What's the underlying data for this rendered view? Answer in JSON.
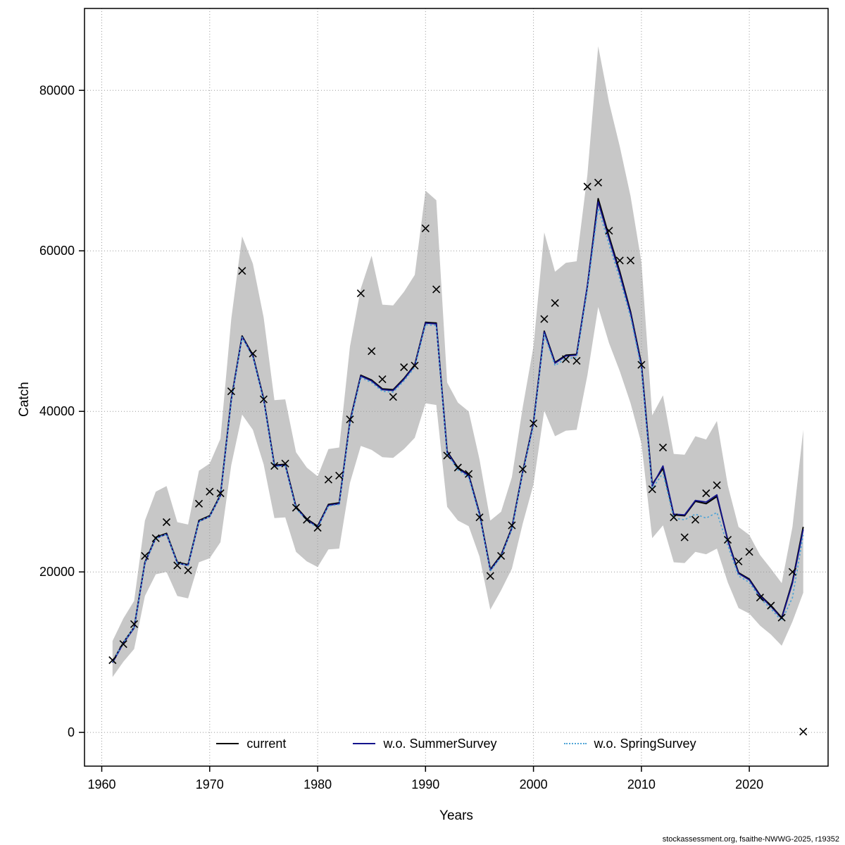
{
  "figure": {
    "footer": "stockassessment.org, fsaithe-NWWG-2025, r19352"
  },
  "legend": [
    {
      "label": "current",
      "color": "#000000",
      "style": "solid"
    },
    {
      "label": "w.o. SummerSurvey",
      "color": "#14148c",
      "style": "solid"
    },
    {
      "label": "w.o. SpringSurvey",
      "color": "#4fa4d6",
      "style": "dotted"
    }
  ],
  "chart_data": {
    "type": "line",
    "title": "",
    "xlabel": "Years",
    "ylabel": "Catch",
    "xlim": [
      1958.4,
      2027.3
    ],
    "ylim": [
      -4200,
      90200
    ],
    "xticks": [
      1960,
      1970,
      1980,
      1990,
      2000,
      2010,
      2020
    ],
    "yticks": [
      0,
      20000,
      40000,
      60000,
      80000
    ],
    "grid": true,
    "legend_position": "bottom-inside",
    "colors": {
      "band": "#c7c7c7",
      "grid": "#999999",
      "box": "#000000",
      "marker": "#000000"
    },
    "x": [
      1961,
      1962,
      1963,
      1964,
      1965,
      1966,
      1967,
      1968,
      1969,
      1970,
      1971,
      1972,
      1973,
      1974,
      1975,
      1976,
      1977,
      1978,
      1979,
      1980,
      1981,
      1982,
      1983,
      1984,
      1985,
      1986,
      1987,
      1988,
      1989,
      1990,
      1991,
      1992,
      1993,
      1994,
      1995,
      1996,
      1997,
      1998,
      1999,
      2000,
      2001,
      2002,
      2003,
      2004,
      2005,
      2006,
      2007,
      2008,
      2009,
      2010,
      2011,
      2012,
      2013,
      2014,
      2015,
      2016,
      2017,
      2018,
      2019,
      2020,
      2021,
      2022,
      2023,
      2024,
      2025
    ],
    "band": {
      "lower": [
        6900,
        8800,
        10400,
        17000,
        19700,
        20000,
        17000,
        16700,
        21200,
        21700,
        23700,
        33300,
        39600,
        37700,
        33400,
        26700,
        26800,
        22500,
        21300,
        20600,
        22800,
        22900,
        31100,
        35700,
        35200,
        34300,
        34200,
        35300,
        36700,
        41000,
        40800,
        28100,
        26400,
        25700,
        21900,
        15300,
        17700,
        20400,
        26000,
        30900,
        40100,
        36900,
        37600,
        37700,
        44500,
        53000,
        48500,
        45000,
        41000,
        36000,
        24200,
        25800,
        21200,
        21100,
        22500,
        22200,
        22900,
        18700,
        15500,
        14800,
        13300,
        12200,
        10800,
        13800,
        17400
      ],
      "upper": [
        11400,
        14200,
        16400,
        26400,
        30000,
        30700,
        26200,
        25900,
        32600,
        33500,
        36600,
        51500,
        61800,
        58400,
        51700,
        41400,
        41500,
        34900,
        33000,
        31900,
        35300,
        35500,
        48100,
        55300,
        59400,
        53300,
        53200,
        54900,
        57000,
        67500,
        66300,
        43600,
        41100,
        40000,
        34000,
        26400,
        27500,
        31800,
        40500,
        48100,
        62300,
        57400,
        58500,
        58700,
        69500,
        85500,
        78500,
        73000,
        66800,
        58600,
        39500,
        42000,
        34700,
        34600,
        36900,
        36500,
        38800,
        30800,
        25600,
        24600,
        22100,
        20400,
        18600,
        25600,
        37700
      ]
    },
    "series": [
      {
        "name": "current",
        "color": "#000000",
        "dash": "solid",
        "width": 2.0,
        "values": [
          8800,
          11200,
          13100,
          21200,
          24300,
          24800,
          21200,
          20900,
          26400,
          27000,
          29600,
          41500,
          49400,
          47000,
          41600,
          33300,
          33400,
          28100,
          26600,
          25700,
          28400,
          28600,
          38800,
          44500,
          43900,
          42800,
          42700,
          44100,
          45800,
          51100,
          51000,
          35000,
          33000,
          32100,
          27300,
          20300,
          22100,
          25500,
          32500,
          38600,
          50000,
          46100,
          47000,
          47100,
          55600,
          66500,
          61800,
          57400,
          52400,
          45900,
          30900,
          32900,
          27100,
          27000,
          28800,
          28500,
          29400,
          24000,
          19900,
          19100,
          17100,
          15800,
          14300,
          18800,
          25600
        ]
      },
      {
        "name": "w.o. SummerSurvey",
        "color": "#14148c",
        "dash": "solid",
        "width": 1.8,
        "values": [
          8700,
          11100,
          13000,
          21100,
          24200,
          24700,
          21100,
          20800,
          26300,
          26900,
          29500,
          41400,
          49300,
          46900,
          41500,
          33200,
          33300,
          28000,
          26500,
          25600,
          28300,
          28500,
          38700,
          44400,
          43800,
          42700,
          42600,
          44000,
          45700,
          51000,
          50900,
          34900,
          32900,
          32000,
          27200,
          20200,
          22000,
          25400,
          32400,
          38500,
          49900,
          46000,
          46900,
          47000,
          55700,
          66100,
          61500,
          57100,
          52200,
          45700,
          30700,
          33200,
          27200,
          27100,
          28900,
          28700,
          29600,
          23900,
          19800,
          19000,
          17000,
          15700,
          14200,
          18600,
          25300
        ]
      },
      {
        "name": "w.o. SpringSurvey",
        "color": "#4fa4d6",
        "dash": "dotted",
        "width": 1.7,
        "values": [
          8800,
          11200,
          13100,
          21100,
          24200,
          24700,
          21100,
          20800,
          26300,
          26900,
          29500,
          41300,
          49200,
          46800,
          41400,
          33100,
          33200,
          27900,
          26400,
          25500,
          28200,
          28400,
          38500,
          44200,
          43600,
          42500,
          42400,
          43800,
          45500,
          50800,
          50700,
          34700,
          32700,
          31800,
          27000,
          20100,
          21900,
          25300,
          32300,
          38300,
          49600,
          45700,
          46600,
          46700,
          55200,
          65300,
          60800,
          56500,
          51700,
          45300,
          30400,
          32300,
          26700,
          26500,
          27200,
          26700,
          27400,
          23300,
          19500,
          18700,
          16700,
          15400,
          13900,
          16800,
          24600
        ]
      }
    ],
    "observed": {
      "marker": "x",
      "color": "#000000",
      "values": [
        9000,
        11000,
        13500,
        22000,
        24200,
        26200,
        20800,
        20200,
        28500,
        30000,
        29800,
        42500,
        57500,
        47200,
        41500,
        33200,
        33500,
        28000,
        26500,
        25500,
        31500,
        32000,
        39000,
        54700,
        47500,
        44000,
        41800,
        45500,
        45700,
        62800,
        55200,
        34500,
        33000,
        32200,
        26800,
        19500,
        22000,
        25800,
        32800,
        38500,
        51500,
        53500,
        46500,
        46300,
        68000,
        68500,
        62500,
        58800,
        58800,
        45800,
        30300,
        35500,
        26800,
        24300,
        26500,
        29800,
        30800,
        24000,
        21300,
        22500,
        16800,
        15800,
        14300,
        20000,
        100
      ]
    }
  }
}
